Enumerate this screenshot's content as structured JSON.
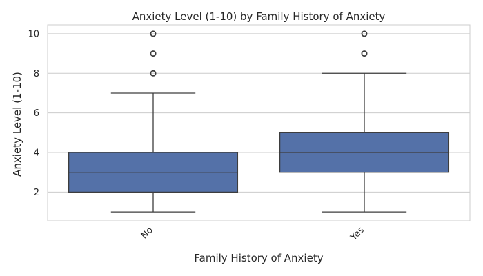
{
  "chart_data": {
    "type": "box",
    "title": "Anxiety Level (1-10) by Family History of Anxiety",
    "xlabel": "Family History of Anxiety",
    "ylabel": "Anxiety Level (1-10)",
    "categories": [
      "No",
      "Yes"
    ],
    "ylim": [
      0.55,
      10.45
    ],
    "yticks": [
      2,
      4,
      6,
      8,
      10
    ],
    "grid": true,
    "box_color": "#5471a8",
    "line_color": "#3d3d3d",
    "boxes": [
      {
        "category": "No",
        "whisker_low": 1,
        "q1": 2,
        "median": 3,
        "q3": 4,
        "whisker_high": 7,
        "outliers": [
          8,
          9,
          10
        ]
      },
      {
        "category": "Yes",
        "whisker_low": 1,
        "q1": 3,
        "median": 4,
        "q3": 5,
        "whisker_high": 8,
        "outliers": [
          9,
          10
        ]
      }
    ]
  }
}
